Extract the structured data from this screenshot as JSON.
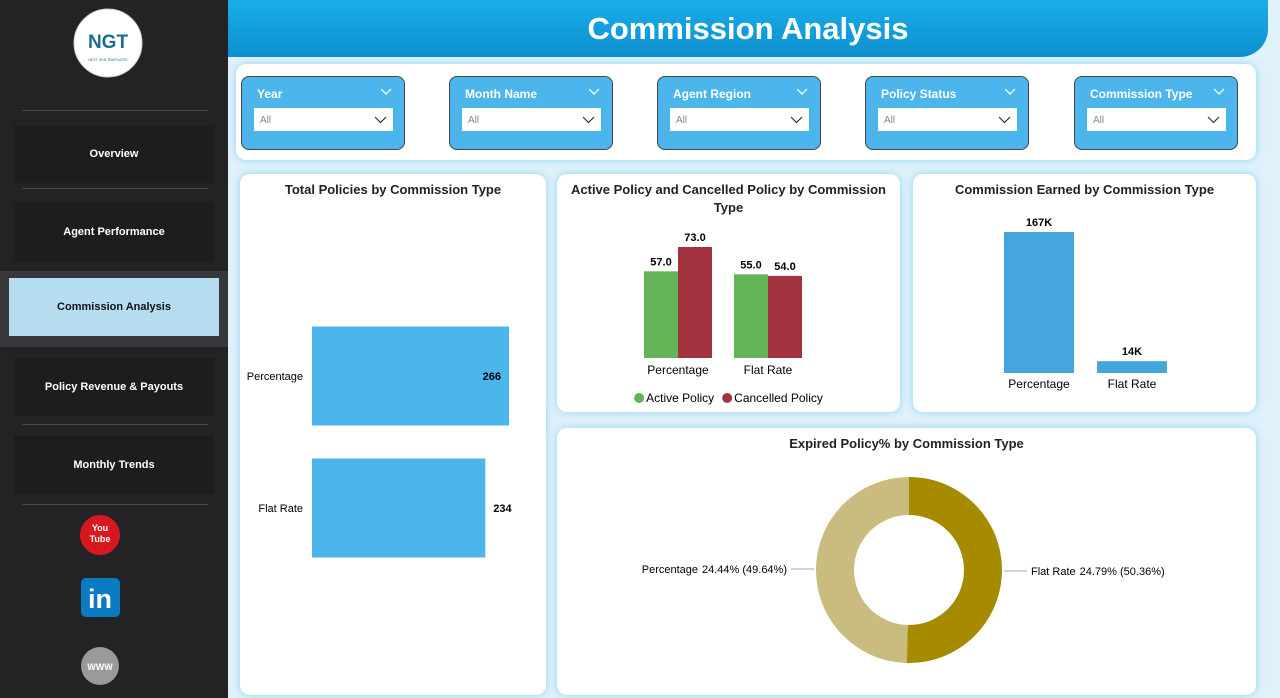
{
  "sidebar": {
    "logo": {
      "name": "NGT",
      "tagline": "NEXT GEN TEMPLATES"
    },
    "nav": [
      "Overview",
      "Agent Performance",
      "Commission Analysis",
      "Policy Revenue & Payouts",
      "Monthly Trends"
    ],
    "social": {
      "youtube": [
        "You",
        "Tube"
      ],
      "linkedin": "in",
      "web": "WWW"
    }
  },
  "header": {
    "title": "Commission Analysis"
  },
  "filters": [
    {
      "label": "Year",
      "value": "All"
    },
    {
      "label": "Month Name",
      "value": "All"
    },
    {
      "label": "Agent Region",
      "value": "All"
    },
    {
      "label": "Policy Status",
      "value": "All"
    },
    {
      "label": "Commission Type",
      "value": "All"
    }
  ],
  "chart_data": [
    {
      "type": "bar",
      "orientation": "horizontal",
      "title": "Total Policies by Commission Type",
      "categories": [
        "Percentage",
        "Flat Rate"
      ],
      "values": [
        266,
        234
      ],
      "color": "#4bb5ec"
    },
    {
      "type": "bar",
      "title": "Active Policy and Cancelled Policy by Commission Type",
      "categories": [
        "Percentage",
        "Flat Rate"
      ],
      "legend": "bottom",
      "series": [
        {
          "name": "Active Policy",
          "color": "#63b456",
          "values": [
            57,
            55
          ],
          "value_labels": [
            "57.0",
            "55.0"
          ]
        },
        {
          "name": "Cancelled Policy",
          "color": "#a3333f",
          "values": [
            73,
            54
          ],
          "value_labels": [
            "73.0",
            "54.0"
          ]
        }
      ]
    },
    {
      "type": "bar",
      "title": "Commission Earned by Commission Type",
      "categories": [
        "Percentage",
        "Flat Rate"
      ],
      "values": [
        167000,
        14000
      ],
      "value_labels": [
        "167K",
        "14K"
      ],
      "color": "#44a6dc"
    },
    {
      "type": "donut",
      "title": "Expired Policy% by Commission Type",
      "categories": [
        "Percentage",
        "Flat Rate"
      ],
      "values": [
        24.44,
        24.79
      ],
      "value_labels": [
        "24.44% (49.64%)",
        "24.79% (50.36%)"
      ],
      "colors": [
        "#c9bc7e",
        "#a68b00"
      ]
    }
  ]
}
